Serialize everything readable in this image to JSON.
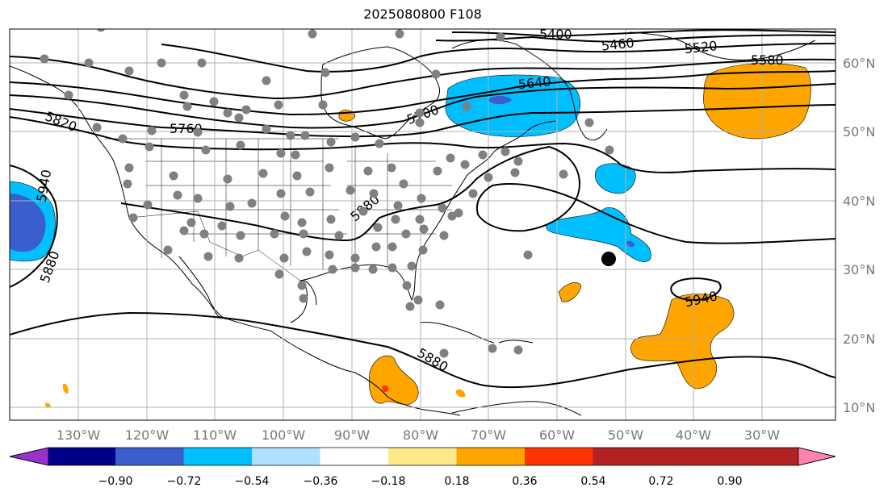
{
  "title": "2025080800 F108",
  "lat_labels": [
    "60°N",
    "50°N",
    "40°N",
    "30°N",
    "20°N",
    "10°N"
  ],
  "lon_labels": [
    "130°W",
    "120°W",
    "110°W",
    "100°W",
    "90°W",
    "80°W",
    "70°W",
    "60°W",
    "50°W",
    "40°W",
    "30°W"
  ],
  "contour_labels": [
    "5400",
    "5460",
    "5520",
    "5580",
    "5640",
    "5700",
    "5760",
    "5820",
    "5940",
    "5880",
    "5880",
    "5880",
    "5940"
  ],
  "colorbar": {
    "ticks": [
      "−0.90",
      "−0.72",
      "−0.54",
      "−0.36",
      "−0.18",
      "0.18",
      "0.36",
      "0.54",
      "0.72",
      "0.90"
    ],
    "colors": [
      "#9932cc",
      "#00008b",
      "#3a5fcd",
      "#00bfff",
      "#b0e0ff",
      "#ffffff",
      "#ffe88a",
      "#ffa500",
      "#ff3300",
      "#b22222",
      "#ff85b0"
    ]
  },
  "colors": {
    "neg_light": "#00bfff",
    "neg_mid": "#3a5fcd",
    "pos_mid": "#ffa500",
    "pos_high": "#ff3300",
    "station": "#808080",
    "marker": "#000000"
  }
}
